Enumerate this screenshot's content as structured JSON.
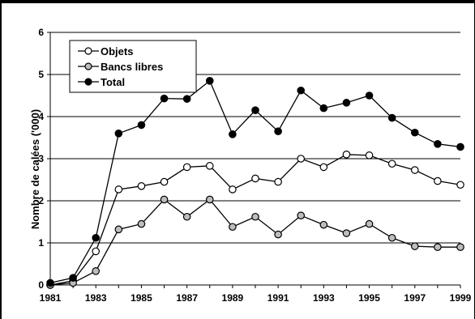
{
  "chart_data": {
    "type": "line",
    "ylabel": "Nombre de calées ('000)",
    "xlabel": "",
    "ylim": [
      0,
      6
    ],
    "yticks": [
      "0",
      "1",
      "2",
      "3",
      "4",
      "5",
      "6"
    ],
    "xtick_labels": [
      "1981",
      "1983",
      "1985",
      "1987",
      "1989",
      "1991",
      "1993",
      "1995",
      "1997",
      "1999"
    ],
    "x": [
      1981,
      1982,
      1983,
      1984,
      1985,
      1986,
      1987,
      1988,
      1989,
      1990,
      1991,
      1992,
      1993,
      1994,
      1995,
      1996,
      1997,
      1998,
      1999
    ],
    "grid": "horizontal",
    "legend_position": "top-left",
    "series": [
      {
        "name": "Objets",
        "marker": "open",
        "values": [
          0.0,
          0.1,
          0.8,
          2.27,
          2.35,
          2.45,
          2.8,
          2.83,
          2.27,
          2.53,
          2.45,
          3.0,
          2.8,
          3.1,
          3.08,
          2.88,
          2.73,
          2.47,
          2.38
        ]
      },
      {
        "name": "Bancs libres",
        "marker": "grey",
        "values": [
          0.0,
          0.05,
          0.33,
          1.32,
          1.45,
          2.03,
          1.62,
          2.03,
          1.38,
          1.62,
          1.2,
          1.65,
          1.43,
          1.23,
          1.45,
          1.12,
          0.92,
          0.9,
          0.9
        ]
      },
      {
        "name": "Total",
        "marker": "filled",
        "values": [
          0.05,
          0.17,
          1.12,
          3.6,
          3.8,
          4.43,
          4.42,
          4.85,
          3.58,
          4.15,
          3.65,
          4.62,
          4.2,
          4.33,
          4.5,
          3.97,
          3.62,
          3.35,
          3.28
        ]
      }
    ],
    "colors": {
      "line": "#000000",
      "grid": "#000000",
      "open_fill": "#ffffff",
      "grey_fill": "#bdbdbd",
      "filled_fill": "#000000"
    }
  }
}
